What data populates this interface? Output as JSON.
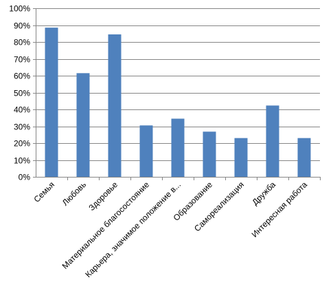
{
  "chart_data": {
    "type": "bar",
    "categories": [
      "Семья",
      "Любовь",
      "Здоровье",
      "Материальное благосостояние",
      "Карьера, значимое положение в...",
      "Образование",
      "Самореализация",
      "Дружба",
      "Интересная работа"
    ],
    "values": [
      88.5,
      61.5,
      84.5,
      30.5,
      34.5,
      26.8,
      23,
      42.3,
      23
    ],
    "value_unit": "%",
    "ylim": [
      0,
      100
    ],
    "yticks": [
      0,
      10,
      20,
      30,
      40,
      50,
      60,
      70,
      80,
      90,
      100
    ],
    "ytick_labels": [
      "0%",
      "10%",
      "20%",
      "30%",
      "40%",
      "50%",
      "60%",
      "70%",
      "80%",
      "90%",
      "100%"
    ],
    "title": "",
    "xlabel": "",
    "ylabel": "",
    "grid": true,
    "legend": "none",
    "bar_color": "#4F81BD",
    "grid_color": "#868686"
  }
}
